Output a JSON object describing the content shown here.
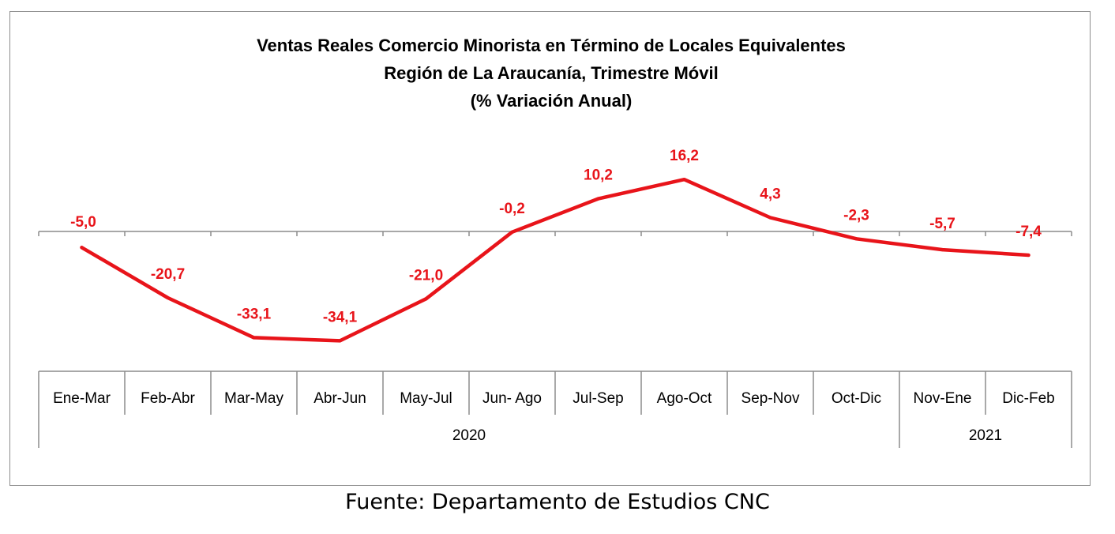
{
  "chart_data": {
    "type": "line",
    "title": [
      "Ventas Reales Comercio Minorista  en Término de Locales Equivalentes",
      "Región de La Araucanía, Trimestre Móvil",
      "(% Variación Anual)"
    ],
    "categories": [
      "Ene-Mar",
      "Feb-Abr",
      "Mar-May",
      "Abr-Jun",
      "May-Jul",
      "Jun- Ago",
      "Jul-Sep",
      "Ago-Oct",
      "Sep-Nov",
      "Oct-Dic",
      "Nov-Ene",
      "Dic-Feb"
    ],
    "groups": [
      {
        "label": "2020",
        "span": 10
      },
      {
        "label": "2021",
        "span": 2
      }
    ],
    "series": [
      {
        "values": [
          -5.0,
          -20.7,
          -33.1,
          -34.1,
          -21.0,
          -0.2,
          10.2,
          16.2,
          4.3,
          -2.3,
          -5.7,
          -7.4
        ],
        "labels": [
          "-5,0",
          "-20,7",
          "-33,1",
          "-34,1",
          "-21,0",
          "-0,2",
          "10,2",
          "16,2",
          "4,3",
          "-2,3",
          "-5,7",
          "-7,4"
        ],
        "color": "#e8141a"
      }
    ],
    "ylim": [
      -40,
      20
    ],
    "grid": false,
    "legend": "none"
  },
  "source": "Fuente: Departamento de Estudios CNC"
}
